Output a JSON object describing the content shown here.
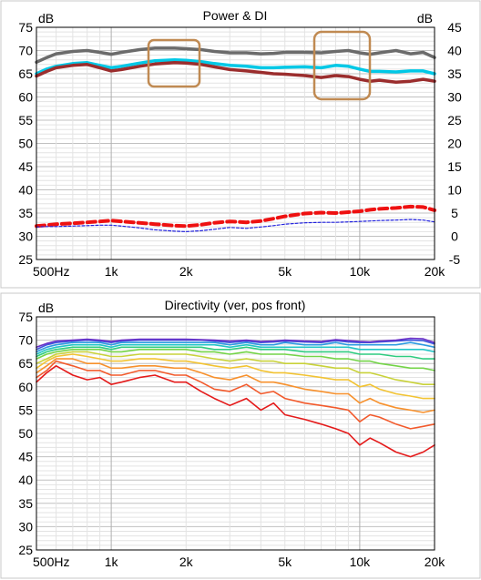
{
  "chart_data": [
    {
      "type": "line",
      "title": "Power & DI",
      "x_scale": "log",
      "xlim": [
        500,
        20000
      ],
      "x_ticks": [
        500,
        1000,
        2000,
        5000,
        10000,
        20000
      ],
      "x_tick_labels": [
        "500Hz",
        "1k",
        "2k",
        "5k",
        "10k",
        "20k"
      ],
      "ylabel_left": "dB",
      "ylim_left": [
        25,
        75
      ],
      "y_ticks_left": [
        25,
        30,
        35,
        40,
        45,
        50,
        55,
        60,
        65,
        70,
        75
      ],
      "ylabel_right": "dB",
      "ylim_right": [
        -5,
        45
      ],
      "y_ticks_right": [
        -5,
        0,
        5,
        10,
        15,
        20,
        25,
        30,
        35,
        40,
        45
      ],
      "grid": true,
      "series": [
        {
          "color": "#6b6b6b",
          "width": 3.5,
          "style": "solid",
          "axis": "left",
          "x": [
            500,
            550,
            600,
            700,
            800,
            900,
            1000,
            1100,
            1300,
            1500,
            1800,
            2000,
            2300,
            2600,
            3000,
            3500,
            4000,
            4500,
            5000,
            6000,
            7000,
            8000,
            9000,
            10000,
            11000,
            12000,
            14000,
            16000,
            18000,
            20000
          ],
          "y": [
            67.5,
            68.5,
            69.3,
            69.8,
            70.0,
            69.6,
            69.2,
            69.6,
            70.2,
            70.5,
            70.5,
            70.4,
            70.2,
            69.8,
            69.5,
            69.5,
            69.3,
            69.4,
            69.6,
            69.6,
            69.5,
            69.8,
            70.0,
            69.5,
            69.2,
            69.5,
            70.0,
            69.3,
            69.6,
            68.5
          ]
        },
        {
          "color": "#00c8e6",
          "width": 3.5,
          "style": "solid",
          "axis": "left",
          "x": [
            500,
            550,
            600,
            700,
            800,
            900,
            1000,
            1100,
            1300,
            1500,
            1800,
            2000,
            2300,
            2600,
            3000,
            3500,
            4000,
            4500,
            5000,
            6000,
            7000,
            8000,
            9000,
            10000,
            11000,
            12000,
            14000,
            16000,
            18000,
            20000
          ],
          "y": [
            65.0,
            66.0,
            66.6,
            67.2,
            67.4,
            66.8,
            66.3,
            66.6,
            67.3,
            67.8,
            68.0,
            67.9,
            67.6,
            67.2,
            66.8,
            66.6,
            66.3,
            66.3,
            66.4,
            66.5,
            66.3,
            66.8,
            66.6,
            66.0,
            65.5,
            65.5,
            65.4,
            65.6,
            65.6,
            65.0
          ]
        },
        {
          "color": "#9b2d2d",
          "width": 3.5,
          "style": "solid",
          "axis": "left",
          "x": [
            500,
            550,
            600,
            700,
            800,
            900,
            1000,
            1100,
            1300,
            1500,
            1800,
            2000,
            2300,
            2600,
            3000,
            3500,
            4000,
            4500,
            5000,
            6000,
            7000,
            8000,
            9000,
            10000,
            11000,
            12000,
            14000,
            16000,
            18000,
            20000
          ],
          "y": [
            64.5,
            65.5,
            66.3,
            66.8,
            67.0,
            66.3,
            65.6,
            65.9,
            66.6,
            67.1,
            67.4,
            67.3,
            67.0,
            66.5,
            65.9,
            65.6,
            65.3,
            65.0,
            64.9,
            64.6,
            64.2,
            64.6,
            64.4,
            63.8,
            63.4,
            63.6,
            63.2,
            63.4,
            63.8,
            63.4
          ]
        },
        {
          "color": "#ee1111",
          "width": 4,
          "style": "dash",
          "axis": "right",
          "x": [
            500,
            550,
            600,
            700,
            800,
            900,
            1000,
            1100,
            1300,
            1500,
            1800,
            2000,
            2300,
            2600,
            3000,
            3500,
            4000,
            4500,
            5000,
            6000,
            7000,
            8000,
            9000,
            10000,
            11000,
            12000,
            14000,
            16000,
            18000,
            20000
          ],
          "y": [
            2.2,
            2.4,
            2.6,
            2.8,
            3.0,
            3.2,
            3.4,
            3.2,
            2.9,
            2.6,
            2.3,
            2.2,
            2.5,
            2.9,
            3.2,
            3.0,
            3.3,
            3.8,
            4.3,
            4.9,
            5.1,
            5.0,
            5.2,
            5.4,
            5.7,
            5.9,
            6.1,
            6.4,
            6.3,
            5.6
          ]
        },
        {
          "color": "#2222dd",
          "width": 1.2,
          "style": "dot",
          "axis": "right",
          "x": [
            500,
            550,
            600,
            700,
            800,
            900,
            1000,
            1100,
            1300,
            1500,
            1800,
            2000,
            2300,
            2600,
            3000,
            3500,
            4000,
            4500,
            5000,
            6000,
            7000,
            8000,
            9000,
            10000,
            11000,
            12000,
            14000,
            16000,
            18000,
            20000
          ],
          "y": [
            2.0,
            2.1,
            2.1,
            2.2,
            2.3,
            2.4,
            2.4,
            2.2,
            1.8,
            1.4,
            1.1,
            1.0,
            1.2,
            1.5,
            1.9,
            1.7,
            2.0,
            2.3,
            2.6,
            2.9,
            3.0,
            3.0,
            3.1,
            3.2,
            3.3,
            3.4,
            3.5,
            3.6,
            3.5,
            3.1
          ]
        }
      ]
    },
    {
      "type": "line",
      "title": "Directivity (ver, pos front)",
      "x_scale": "log",
      "xlim": [
        500,
        20000
      ],
      "x_ticks": [
        500,
        1000,
        2000,
        5000,
        10000,
        20000
      ],
      "x_tick_labels": [
        "500Hz",
        "1k",
        "2k",
        "5k",
        "10k",
        "20k"
      ],
      "ylabel": "dB",
      "ylim": [
        25,
        75
      ],
      "y_ticks": [
        25,
        30,
        35,
        40,
        45,
        50,
        55,
        60,
        65,
        70,
        75
      ],
      "grid": true,
      "x": [
        500,
        550,
        600,
        700,
        800,
        900,
        1000,
        1100,
        1300,
        1500,
        1800,
        2000,
        2300,
        2600,
        3000,
        3500,
        4000,
        4500,
        5000,
        6000,
        7000,
        8000,
        9000,
        10000,
        11000,
        12000,
        14000,
        16000,
        18000,
        20000
      ],
      "series": [
        {
          "color": "#e41a1a",
          "y": [
            61.0,
            63.0,
            64.5,
            62.5,
            61.5,
            62.0,
            60.5,
            61.0,
            62.0,
            62.5,
            61.0,
            61.0,
            59.0,
            57.5,
            56.0,
            57.5,
            55.0,
            56.5,
            54.0,
            53.0,
            52.0,
            51.0,
            50.0,
            47.5,
            49.0,
            48.0,
            46.0,
            45.0,
            46.0,
            47.5
          ]
        },
        {
          "color": "#f25a2c",
          "y": [
            62.0,
            63.5,
            65.5,
            64.5,
            63.5,
            63.5,
            62.5,
            62.5,
            63.5,
            63.5,
            62.5,
            62.5,
            61.0,
            59.5,
            59.0,
            60.5,
            58.5,
            59.0,
            57.5,
            56.5,
            56.0,
            55.5,
            55.0,
            52.5,
            54.0,
            53.5,
            52.0,
            51.0,
            51.5,
            52.0
          ]
        },
        {
          "color": "#f7912d",
          "y": [
            63.0,
            64.5,
            66.0,
            66.0,
            65.0,
            65.0,
            64.0,
            64.0,
            64.5,
            64.5,
            64.0,
            64.0,
            63.0,
            62.0,
            61.5,
            62.5,
            61.0,
            61.0,
            60.5,
            59.5,
            59.0,
            58.5,
            58.5,
            56.5,
            57.5,
            56.5,
            55.5,
            55.0,
            54.5,
            55.0
          ]
        },
        {
          "color": "#f2c332",
          "y": [
            64.0,
            65.5,
            66.5,
            67.0,
            66.5,
            66.0,
            65.5,
            65.5,
            66.0,
            66.0,
            65.5,
            65.5,
            65.0,
            64.5,
            64.0,
            64.5,
            63.5,
            63.0,
            63.0,
            62.5,
            62.0,
            61.5,
            61.5,
            60.0,
            60.5,
            59.5,
            58.5,
            58.0,
            57.5,
            57.5
          ]
        },
        {
          "color": "#c9d23a",
          "y": [
            65.0,
            66.0,
            67.0,
            67.5,
            67.5,
            67.0,
            66.5,
            66.5,
            67.0,
            67.0,
            67.0,
            67.0,
            66.5,
            66.0,
            65.5,
            66.0,
            65.5,
            65.5,
            65.0,
            65.0,
            64.5,
            64.0,
            64.0,
            63.0,
            63.0,
            62.5,
            61.5,
            61.0,
            60.5,
            60.5
          ]
        },
        {
          "color": "#74d448",
          "y": [
            66.0,
            67.0,
            67.5,
            68.0,
            68.0,
            68.0,
            67.5,
            67.5,
            68.0,
            68.0,
            68.0,
            68.0,
            67.5,
            67.5,
            67.0,
            67.5,
            67.0,
            67.0,
            67.0,
            66.5,
            66.5,
            66.0,
            66.0,
            65.5,
            65.5,
            65.0,
            64.5,
            64.0,
            64.0,
            63.5
          ]
        },
        {
          "color": "#2fcc80",
          "y": [
            66.5,
            67.5,
            68.0,
            68.5,
            68.5,
            68.5,
            68.0,
            68.5,
            68.5,
            68.5,
            68.5,
            68.5,
            68.5,
            68.0,
            68.0,
            68.5,
            68.0,
            68.0,
            68.0,
            67.5,
            67.5,
            67.5,
            67.5,
            67.0,
            67.0,
            67.0,
            66.5,
            66.5,
            66.0,
            66.0
          ]
        },
        {
          "color": "#22c6c6",
          "y": [
            67.0,
            68.0,
            68.5,
            69.0,
            69.0,
            69.0,
            68.5,
            69.0,
            69.0,
            69.0,
            69.0,
            69.0,
            69.0,
            69.0,
            68.5,
            69.0,
            68.5,
            68.5,
            68.5,
            68.5,
            68.5,
            68.5,
            68.5,
            68.0,
            68.0,
            68.0,
            68.0,
            68.0,
            68.0,
            67.5
          ]
        },
        {
          "color": "#2e9be0",
          "y": [
            67.5,
            68.5,
            69.0,
            69.5,
            69.5,
            69.5,
            69.0,
            69.5,
            69.5,
            69.5,
            69.5,
            69.5,
            69.5,
            69.5,
            69.0,
            69.5,
            69.0,
            69.0,
            69.5,
            69.0,
            69.0,
            69.5,
            69.0,
            69.0,
            69.0,
            69.0,
            69.0,
            69.5,
            69.0,
            68.5
          ]
        },
        {
          "color": "#3d55dc",
          "y": [
            68.0,
            69.0,
            69.5,
            69.8,
            70.0,
            69.8,
            69.5,
            69.8,
            70.0,
            70.0,
            70.0,
            70.0,
            70.0,
            69.8,
            69.5,
            69.8,
            69.5,
            69.6,
            69.8,
            69.6,
            69.5,
            69.9,
            69.6,
            69.5,
            69.5,
            69.6,
            69.8,
            70.0,
            69.9,
            69.2
          ]
        },
        {
          "color": "#6a30c8",
          "y": [
            68.5,
            69.3,
            69.8,
            70.0,
            70.2,
            70.0,
            69.7,
            70.0,
            70.2,
            70.2,
            70.2,
            70.2,
            70.1,
            70.0,
            69.8,
            70.0,
            69.7,
            69.8,
            70.0,
            69.8,
            69.7,
            70.1,
            69.9,
            69.7,
            69.6,
            69.8,
            70.0,
            70.4,
            70.3,
            69.5
          ]
        }
      ]
    }
  ]
}
